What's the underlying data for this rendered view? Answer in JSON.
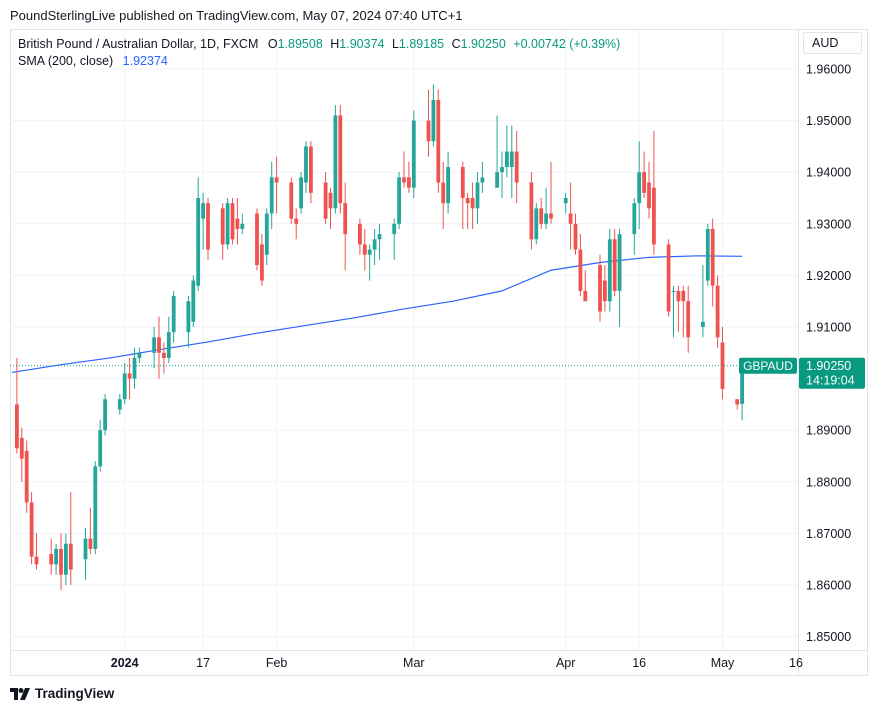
{
  "publisher": "PoundSterlingLive published on TradingView.com, May 07, 2024 07:40 UTC+1",
  "legend": {
    "symbol": "British Pound / Australian Dollar, 1D, FXCM",
    "ohlc": [
      {
        "label": "O",
        "value": "1.89508"
      },
      {
        "label": "H",
        "value": "1.90374"
      },
      {
        "label": "L",
        "value": "1.89185"
      },
      {
        "label": "C",
        "value": "1.90250"
      }
    ],
    "change": "+0.00742 (+0.39%)",
    "sma_label": "SMA (200, close)",
    "sma_value": "1.92374"
  },
  "currency": "AUD",
  "brand": "TradingView",
  "colors": {
    "up": "#26a69a",
    "down": "#ef5350",
    "sma": "#2962ff",
    "grid": "#f0f3fa",
    "accent": "#089981"
  },
  "chart_data": {
    "type": "candlestick",
    "symbol_label": "GBPAUD",
    "last_price": "1.90250",
    "countdown": "14:19:04",
    "y_ticks": [
      "1.96000",
      "1.95000",
      "1.94000",
      "1.93000",
      "1.92000",
      "1.91000",
      "1.90000",
      "1.89000",
      "1.88000",
      "1.87000",
      "1.86000",
      "1.85000"
    ],
    "ylim": [
      1.848,
      1.9645
    ],
    "x_ticks": [
      "2024",
      "17",
      "Feb",
      "Mar",
      "Apr",
      "16",
      "May",
      "16"
    ],
    "x_tick_days": [
      23,
      39,
      54,
      82,
      113,
      128,
      145,
      160
    ],
    "last_day": 149,
    "candles": [
      {
        "d": 1,
        "o": 1.895,
        "h": 1.904,
        "l": 1.8855,
        "c": 1.8865
      },
      {
        "d": 2,
        "o": 1.8885,
        "h": 1.8905,
        "l": 1.88,
        "c": 1.8845
      },
      {
        "d": 3,
        "o": 1.886,
        "h": 1.888,
        "l": 1.874,
        "c": 1.876
      },
      {
        "d": 4,
        "o": 1.876,
        "h": 1.878,
        "l": 1.864,
        "c": 1.8655
      },
      {
        "d": 5,
        "o": 1.8655,
        "h": 1.87,
        "l": 1.863,
        "c": 1.864
      },
      {
        "d": 8,
        "o": 1.866,
        "h": 1.869,
        "l": 1.862,
        "c": 1.864
      },
      {
        "d": 9,
        "o": 1.864,
        "h": 1.868,
        "l": 1.862,
        "c": 1.867
      },
      {
        "d": 10,
        "o": 1.867,
        "h": 1.87,
        "l": 1.859,
        "c": 1.862
      },
      {
        "d": 11,
        "o": 1.862,
        "h": 1.87,
        "l": 1.86,
        "c": 1.868
      },
      {
        "d": 12,
        "o": 1.868,
        "h": 1.878,
        "l": 1.86,
        "c": 1.863
      },
      {
        "d": 15,
        "o": 1.865,
        "h": 1.871,
        "l": 1.861,
        "c": 1.869
      },
      {
        "d": 16,
        "o": 1.869,
        "h": 1.875,
        "l": 1.866,
        "c": 1.867
      },
      {
        "d": 17,
        "o": 1.867,
        "h": 1.884,
        "l": 1.866,
        "c": 1.883
      },
      {
        "d": 18,
        "o": 1.883,
        "h": 1.892,
        "l": 1.882,
        "c": 1.89
      },
      {
        "d": 19,
        "o": 1.89,
        "h": 1.897,
        "l": 1.889,
        "c": 1.896
      },
      {
        "d": 22,
        "o": 1.894,
        "h": 1.897,
        "l": 1.893,
        "c": 1.896
      },
      {
        "d": 23,
        "o": 1.896,
        "h": 1.903,
        "l": 1.895,
        "c": 1.901
      },
      {
        "d": 24,
        "o": 1.901,
        "h": 1.904,
        "l": 1.896,
        "c": 1.9
      },
      {
        "d": 25,
        "o": 1.9,
        "h": 1.906,
        "l": 1.898,
        "c": 1.904
      },
      {
        "d": 26,
        "o": 1.904,
        "h": 1.906,
        "l": 1.903,
        "c": 1.905
      },
      {
        "d": 29,
        "o": 1.905,
        "h": 1.91,
        "l": 1.902,
        "c": 1.908
      },
      {
        "d": 30,
        "o": 1.908,
        "h": 1.912,
        "l": 1.9,
        "c": 1.905
      },
      {
        "d": 31,
        "o": 1.905,
        "h": 1.907,
        "l": 1.901,
        "c": 1.904
      },
      {
        "d": 32,
        "o": 1.904,
        "h": 1.912,
        "l": 1.903,
        "c": 1.909
      },
      {
        "d": 33,
        "o": 1.909,
        "h": 1.917,
        "l": 1.907,
        "c": 1.916
      },
      {
        "d": 36,
        "o": 1.909,
        "h": 1.916,
        "l": 1.906,
        "c": 1.915
      },
      {
        "d": 37,
        "o": 1.911,
        "h": 1.92,
        "l": 1.91,
        "c": 1.919
      },
      {
        "d": 38,
        "o": 1.918,
        "h": 1.939,
        "l": 1.917,
        "c": 1.935
      },
      {
        "d": 39,
        "o": 1.931,
        "h": 1.936,
        "l": 1.925,
        "c": 1.934
      },
      {
        "d": 40,
        "o": 1.934,
        "h": 1.935,
        "l": 1.923,
        "c": 1.925
      },
      {
        "d": 43,
        "o": 1.933,
        "h": 1.934,
        "l": 1.923,
        "c": 1.926
      },
      {
        "d": 44,
        "o": 1.926,
        "h": 1.935,
        "l": 1.925,
        "c": 1.934
      },
      {
        "d": 45,
        "o": 1.934,
        "h": 1.935,
        "l": 1.926,
        "c": 1.927
      },
      {
        "d": 46,
        "o": 1.931,
        "h": 1.935,
        "l": 1.926,
        "c": 1.929
      },
      {
        "d": 47,
        "o": 1.929,
        "h": 1.932,
        "l": 1.928,
        "c": 1.93
      },
      {
        "d": 50,
        "o": 1.932,
        "h": 1.933,
        "l": 1.921,
        "c": 1.922
      },
      {
        "d": 51,
        "o": 1.926,
        "h": 1.928,
        "l": 1.918,
        "c": 1.919
      },
      {
        "d": 52,
        "o": 1.924,
        "h": 1.933,
        "l": 1.922,
        "c": 1.932
      },
      {
        "d": 53,
        "o": 1.932,
        "h": 1.942,
        "l": 1.929,
        "c": 1.939
      },
      {
        "d": 54,
        "o": 1.939,
        "h": 1.943,
        "l": 1.932,
        "c": 1.938
      },
      {
        "d": 57,
        "o": 1.938,
        "h": 1.939,
        "l": 1.93,
        "c": 1.931
      },
      {
        "d": 58,
        "o": 1.931,
        "h": 1.933,
        "l": 1.927,
        "c": 1.93
      },
      {
        "d": 59,
        "o": 1.933,
        "h": 1.94,
        "l": 1.932,
        "c": 1.939
      },
      {
        "d": 60,
        "o": 1.938,
        "h": 1.946,
        "l": 1.936,
        "c": 1.945
      },
      {
        "d": 61,
        "o": 1.945,
        "h": 1.946,
        "l": 1.934,
        "c": 1.936
      },
      {
        "d": 64,
        "o": 1.938,
        "h": 1.94,
        "l": 1.93,
        "c": 1.931
      },
      {
        "d": 65,
        "o": 1.936,
        "h": 1.937,
        "l": 1.929,
        "c": 1.933
      },
      {
        "d": 66,
        "o": 1.933,
        "h": 1.953,
        "l": 1.932,
        "c": 1.951
      },
      {
        "d": 67,
        "o": 1.951,
        "h": 1.953,
        "l": 1.932,
        "c": 1.934
      },
      {
        "d": 68,
        "o": 1.934,
        "h": 1.938,
        "l": 1.921,
        "c": 1.928
      },
      {
        "d": 71,
        "o": 1.93,
        "h": 1.931,
        "l": 1.924,
        "c": 1.926
      },
      {
        "d": 72,
        "o": 1.926,
        "h": 1.929,
        "l": 1.921,
        "c": 1.924
      },
      {
        "d": 73,
        "o": 1.924,
        "h": 1.926,
        "l": 1.919,
        "c": 1.925
      },
      {
        "d": 74,
        "o": 1.925,
        "h": 1.929,
        "l": 1.922,
        "c": 1.927
      },
      {
        "d": 75,
        "o": 1.927,
        "h": 1.93,
        "l": 1.923,
        "c": 1.928
      },
      {
        "d": 78,
        "o": 1.928,
        "h": 1.931,
        "l": 1.923,
        "c": 1.93
      },
      {
        "d": 79,
        "o": 1.93,
        "h": 1.94,
        "l": 1.929,
        "c": 1.939
      },
      {
        "d": 80,
        "o": 1.939,
        "h": 1.944,
        "l": 1.937,
        "c": 1.938
      },
      {
        "d": 81,
        "o": 1.939,
        "h": 1.942,
        "l": 1.936,
        "c": 1.937
      },
      {
        "d": 82,
        "o": 1.937,
        "h": 1.952,
        "l": 1.935,
        "c": 1.95
      },
      {
        "d": 85,
        "o": 1.95,
        "h": 1.956,
        "l": 1.943,
        "c": 1.946
      },
      {
        "d": 86,
        "o": 1.946,
        "h": 1.957,
        "l": 1.945,
        "c": 1.954
      },
      {
        "d": 87,
        "o": 1.954,
        "h": 1.956,
        "l": 1.936,
        "c": 1.938
      },
      {
        "d": 88,
        "o": 1.938,
        "h": 1.942,
        "l": 1.929,
        "c": 1.934
      },
      {
        "d": 89,
        "o": 1.934,
        "h": 1.944,
        "l": 1.932,
        "c": 1.941
      },
      {
        "d": 92,
        "o": 1.941,
        "h": 1.942,
        "l": 1.929,
        "c": 1.935
      },
      {
        "d": 93,
        "o": 1.935,
        "h": 1.936,
        "l": 1.929,
        "c": 1.934
      },
      {
        "d": 94,
        "o": 1.935,
        "h": 1.938,
        "l": 1.929,
        "c": 1.933
      },
      {
        "d": 95,
        "o": 1.933,
        "h": 1.94,
        "l": 1.93,
        "c": 1.938
      },
      {
        "d": 96,
        "o": 1.938,
        "h": 1.942,
        "l": 1.936,
        "c": 1.939
      },
      {
        "d": 99,
        "o": 1.937,
        "h": 1.951,
        "l": 1.937,
        "c": 1.94
      },
      {
        "d": 100,
        "o": 1.94,
        "h": 1.944,
        "l": 1.935,
        "c": 1.941
      },
      {
        "d": 101,
        "o": 1.941,
        "h": 1.949,
        "l": 1.939,
        "c": 1.944
      },
      {
        "d": 102,
        "o": 1.941,
        "h": 1.949,
        "l": 1.935,
        "c": 1.944
      },
      {
        "d": 103,
        "o": 1.944,
        "h": 1.948,
        "l": 1.934,
        "c": 1.938
      },
      {
        "d": 106,
        "o": 1.938,
        "h": 1.94,
        "l": 1.925,
        "c": 1.927
      },
      {
        "d": 107,
        "o": 1.927,
        "h": 1.934,
        "l": 1.926,
        "c": 1.933
      },
      {
        "d": 108,
        "o": 1.933,
        "h": 1.935,
        "l": 1.929,
        "c": 1.93
      },
      {
        "d": 109,
        "o": 1.93,
        "h": 1.937,
        "l": 1.929,
        "c": 1.932
      },
      {
        "d": 110,
        "o": 1.932,
        "h": 1.942,
        "l": 1.93,
        "c": 1.931
      },
      {
        "d": 113,
        "o": 1.934,
        "h": 1.936,
        "l": 1.932,
        "c": 1.935
      },
      {
        "d": 114,
        "o": 1.932,
        "h": 1.938,
        "l": 1.925,
        "c": 1.93
      },
      {
        "d": 115,
        "o": 1.93,
        "h": 1.932,
        "l": 1.924,
        "c": 1.925
      },
      {
        "d": 116,
        "o": 1.925,
        "h": 1.928,
        "l": 1.916,
        "c": 1.917
      },
      {
        "d": 117,
        "o": 1.917,
        "h": 1.921,
        "l": 1.915,
        "c": 1.915
      },
      {
        "d": 120,
        "o": 1.922,
        "h": 1.924,
        "l": 1.911,
        "c": 1.913
      },
      {
        "d": 121,
        "o": 1.919,
        "h": 1.922,
        "l": 1.913,
        "c": 1.915
      },
      {
        "d": 122,
        "o": 1.915,
        "h": 1.929,
        "l": 1.913,
        "c": 1.927
      },
      {
        "d": 123,
        "o": 1.927,
        "h": 1.929,
        "l": 1.916,
        "c": 1.917
      },
      {
        "d": 124,
        "o": 1.917,
        "h": 1.929,
        "l": 1.91,
        "c": 1.928
      },
      {
        "d": 127,
        "o": 1.928,
        "h": 1.935,
        "l": 1.924,
        "c": 1.934
      },
      {
        "d": 128,
        "o": 1.934,
        "h": 1.946,
        "l": 1.929,
        "c": 1.94
      },
      {
        "d": 129,
        "o": 1.94,
        "h": 1.944,
        "l": 1.935,
        "c": 1.936
      },
      {
        "d": 130,
        "o": 1.938,
        "h": 1.942,
        "l": 1.931,
        "c": 1.933
      },
      {
        "d": 131,
        "o": 1.937,
        "h": 1.948,
        "l": 1.924,
        "c": 1.926
      },
      {
        "d": 134,
        "o": 1.926,
        "h": 1.927,
        "l": 1.912,
        "c": 1.913
      },
      {
        "d": 135,
        "o": 1.917,
        "h": 1.918,
        "l": 1.908,
        "c": 1.917
      },
      {
        "d": 136,
        "o": 1.917,
        "h": 1.918,
        "l": 1.909,
        "c": 1.915
      },
      {
        "d": 137,
        "o": 1.917,
        "h": 1.918,
        "l": 1.908,
        "c": 1.915
      },
      {
        "d": 138,
        "o": 1.915,
        "h": 1.918,
        "l": 1.905,
        "c": 1.908
      },
      {
        "d": 141,
        "o": 1.91,
        "h": 1.922,
        "l": 1.908,
        "c": 1.911
      },
      {
        "d": 142,
        "o": 1.919,
        "h": 1.93,
        "l": 1.918,
        "c": 1.929
      },
      {
        "d": 143,
        "o": 1.929,
        "h": 1.931,
        "l": 1.914,
        "c": 1.918
      },
      {
        "d": 144,
        "o": 1.918,
        "h": 1.92,
        "l": 1.906,
        "c": 1.908
      },
      {
        "d": 145,
        "o": 1.907,
        "h": 1.91,
        "l": 1.896,
        "c": 1.898
      },
      {
        "d": 148,
        "o": 1.896,
        "h": 1.896,
        "l": 1.894,
        "c": 1.895
      },
      {
        "d": 149,
        "o": 1.8951,
        "h": 1.9037,
        "l": 1.8919,
        "c": 1.9025
      }
    ],
    "sma": [
      {
        "d": 0,
        "v": 1.9012
      },
      {
        "d": 10,
        "v": 1.9027
      },
      {
        "d": 20,
        "v": 1.904
      },
      {
        "d": 30,
        "v": 1.9056
      },
      {
        "d": 40,
        "v": 1.9071
      },
      {
        "d": 50,
        "v": 1.9088
      },
      {
        "d": 60,
        "v": 1.9103
      },
      {
        "d": 70,
        "v": 1.9118
      },
      {
        "d": 80,
        "v": 1.9135
      },
      {
        "d": 90,
        "v": 1.915
      },
      {
        "d": 100,
        "v": 1.917
      },
      {
        "d": 110,
        "v": 1.921
      },
      {
        "d": 120,
        "v": 1.9225
      },
      {
        "d": 130,
        "v": 1.9235
      },
      {
        "d": 140,
        "v": 1.9238
      },
      {
        "d": 149,
        "v": 1.9237
      }
    ]
  }
}
